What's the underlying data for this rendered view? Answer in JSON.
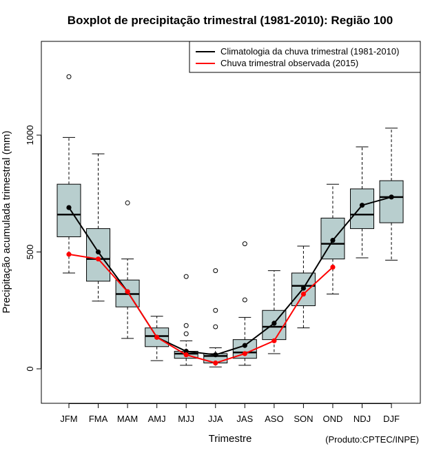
{
  "chart_data": {
    "type": "boxplot",
    "title": "Boxplot de precipitação trimestral (1981-2010): Região 100",
    "xlabel": "Trimestre",
    "ylabel": "Precipitação acumulada trimestral (mm)",
    "ylim": [
      -150,
      1420
    ],
    "yticks": [
      0,
      500,
      1000
    ],
    "credit": "(Produto:CPTEC/INPE)",
    "legend": {
      "position": "top-right",
      "entries": [
        {
          "label": "Climatologia da chuva trimestral (1981-2010)",
          "color": "#000000"
        },
        {
          "label": "Chuva trimestral observada (2015)",
          "color": "#ff0000"
        }
      ]
    },
    "box_color": "#b8cece",
    "categories": [
      "JFM",
      "FMA",
      "MAM",
      "AMJ",
      "MJJ",
      "JJA",
      "JAS",
      "ASO",
      "SON",
      "OND",
      "NDJ",
      "DJF"
    ],
    "boxes": [
      {
        "min": 410,
        "q1": 565,
        "median": 660,
        "q3": 790,
        "max": 990,
        "outliers": [
          1250
        ]
      },
      {
        "min": 290,
        "q1": 375,
        "median": 470,
        "q3": 600,
        "max": 920,
        "outliers": []
      },
      {
        "min": 130,
        "q1": 265,
        "median": 320,
        "q3": 380,
        "max": 470,
        "outliers": [
          710
        ]
      },
      {
        "min": 35,
        "q1": 95,
        "median": 140,
        "q3": 175,
        "max": 225,
        "outliers": []
      },
      {
        "min": 15,
        "q1": 45,
        "median": 65,
        "q3": 75,
        "max": 120,
        "outliers": [
          395,
          185,
          150
        ]
      },
      {
        "min": 8,
        "q1": 25,
        "median": 55,
        "q3": 65,
        "max": 90,
        "outliers": [
          420,
          250,
          180
        ]
      },
      {
        "min": 15,
        "q1": 45,
        "median": 70,
        "q3": 125,
        "max": 220,
        "outliers": [
          535,
          295
        ]
      },
      {
        "min": 65,
        "q1": 125,
        "median": 180,
        "q3": 250,
        "max": 420,
        "outliers": []
      },
      {
        "min": 175,
        "q1": 270,
        "median": 355,
        "q3": 410,
        "max": 525,
        "outliers": []
      },
      {
        "min": 320,
        "q1": 470,
        "median": 535,
        "q3": 645,
        "max": 790,
        "outliers": []
      },
      {
        "min": 475,
        "q1": 600,
        "median": 660,
        "q3": 770,
        "max": 950,
        "outliers": []
      },
      {
        "min": 465,
        "q1": 625,
        "median": 735,
        "q3": 805,
        "max": 1030,
        "outliers": []
      }
    ],
    "series": [
      {
        "name": "Climatologia da chuva trimestral (1981-2010)",
        "color": "#000000",
        "values": [
          690,
          500,
          330,
          135,
          75,
          60,
          100,
          195,
          345,
          550,
          700,
          735
        ]
      },
      {
        "name": "Chuva trimestral observada (2015)",
        "color": "#ff0000",
        "values": [
          490,
          470,
          330,
          135,
          60,
          25,
          65,
          120,
          320,
          435
        ]
      }
    ]
  }
}
